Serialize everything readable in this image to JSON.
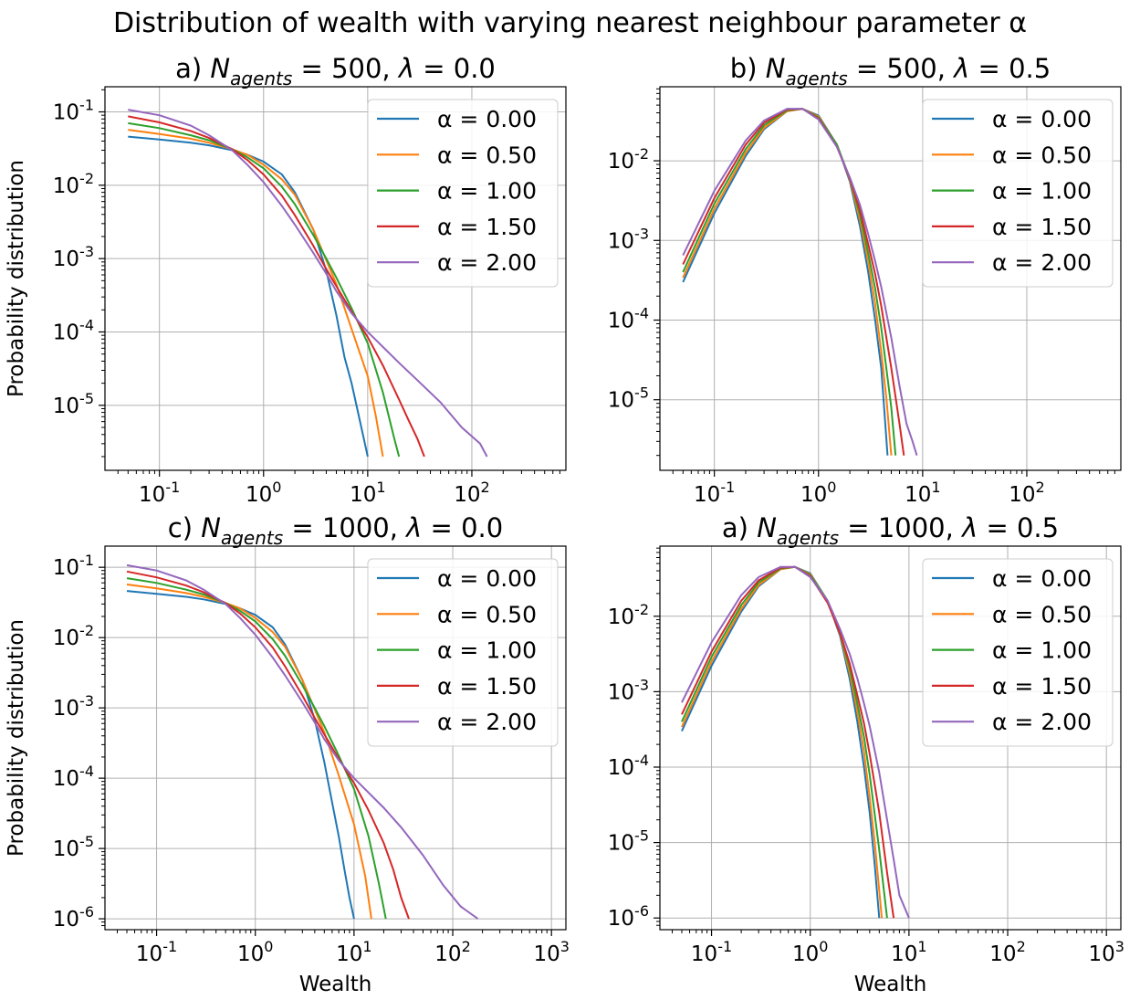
{
  "figure": {
    "suptitle": "Distribution of wealth with varying nearest neighbour parameter α"
  },
  "chart_data": [
    {
      "type": "line",
      "panel_prefix": "a)",
      "n_agents": "500",
      "lambda": "0.0",
      "xlabel": "",
      "ylabel": "Probability distribution",
      "xscale": "log",
      "yscale": "log",
      "xlim": [
        0.03,
        800
      ],
      "ylim": [
        1.3e-06,
        0.22
      ],
      "xticks": [
        0.1,
        1,
        10,
        100
      ],
      "yticks": [
        1e-05,
        0.0001,
        0.001,
        0.01,
        0.1
      ],
      "grid": true,
      "legend_loc": "upper right",
      "series": [
        {
          "name": "α = 0.00",
          "color": "#1f77b4",
          "x": [
            0.05,
            0.1,
            0.2,
            0.3,
            0.5,
            0.7,
            1,
            1.5,
            2,
            3,
            4,
            5,
            6,
            7,
            8,
            9,
            10
          ],
          "y": [
            0.046,
            0.042,
            0.038,
            0.035,
            0.03,
            0.026,
            0.021,
            0.014,
            0.008,
            0.0025,
            0.00068,
            0.00017,
            4.5e-05,
            2e-05,
            8.5e-06,
            4e-06,
            2e-06
          ]
        },
        {
          "name": "α = 0.50",
          "color": "#ff7f0e",
          "x": [
            0.05,
            0.1,
            0.2,
            0.3,
            0.5,
            0.7,
            1,
            1.5,
            2,
            3,
            4,
            5,
            7,
            10,
            12,
            14
          ],
          "y": [
            0.057,
            0.05,
            0.043,
            0.038,
            0.031,
            0.026,
            0.019,
            0.012,
            0.0074,
            0.0025,
            0.00095,
            0.00045,
            0.00011,
            2.5e-05,
            7e-06,
            2e-06
          ]
        },
        {
          "name": "α = 1.00",
          "color": "#2ca02c",
          "x": [
            0.05,
            0.1,
            0.2,
            0.3,
            0.5,
            0.7,
            1,
            1.5,
            2,
            3,
            4,
            5,
            7,
            10,
            14,
            18,
            20
          ],
          "y": [
            0.07,
            0.06,
            0.048,
            0.041,
            0.031,
            0.024,
            0.017,
            0.0095,
            0.0055,
            0.0021,
            0.001,
            0.00055,
            0.00021,
            7e-05,
            1.5e-05,
            3.5e-06,
            2e-06
          ]
        },
        {
          "name": "α = 1.50",
          "color": "#d62728",
          "x": [
            0.05,
            0.1,
            0.2,
            0.3,
            0.5,
            0.7,
            1,
            1.5,
            2,
            3,
            4,
            5,
            7,
            10,
            14,
            20,
            25,
            30,
            35
          ],
          "y": [
            0.087,
            0.072,
            0.055,
            0.044,
            0.031,
            0.022,
            0.014,
            0.0072,
            0.0039,
            0.0015,
            0.00072,
            0.00042,
            0.00019,
            8.5e-05,
            3.5e-05,
            1.2e-05,
            6e-06,
            3.5e-06,
            2e-06
          ]
        },
        {
          "name": "α = 2.00",
          "color": "#9467bd",
          "x": [
            0.05,
            0.1,
            0.2,
            0.3,
            0.5,
            0.7,
            1,
            1.5,
            2,
            3,
            4,
            5,
            7,
            10,
            20,
            30,
            50,
            80,
            120,
            140
          ],
          "y": [
            0.107,
            0.09,
            0.065,
            0.048,
            0.03,
            0.019,
            0.011,
            0.0052,
            0.0029,
            0.0012,
            0.00062,
            0.00036,
            0.00018,
            0.0001,
            3.8e-05,
            2.2e-05,
            1.1e-05,
            5e-06,
            3e-06,
            2e-06
          ]
        }
      ]
    },
    {
      "type": "line",
      "panel_prefix": "b)",
      "n_agents": "500",
      "lambda": "0.5",
      "xlabel": "",
      "ylabel": "",
      "xscale": "log",
      "yscale": "log",
      "xlim": [
        0.03,
        800
      ],
      "ylim": [
        1.3e-06,
        0.085
      ],
      "xticks": [
        0.1,
        1,
        10,
        100
      ],
      "yticks": [
        1e-05,
        0.0001,
        0.001,
        0.01
      ],
      "grid": true,
      "legend_loc": "upper right",
      "series": [
        {
          "name": "α = 0.00",
          "color": "#1f77b4",
          "x": [
            0.05,
            0.1,
            0.2,
            0.3,
            0.5,
            0.7,
            1,
            1.5,
            2,
            2.5,
            3,
            3.5,
            4,
            4.3,
            4.6
          ],
          "y": [
            0.0003,
            0.0022,
            0.0115,
            0.025,
            0.042,
            0.045,
            0.037,
            0.016,
            0.0055,
            0.0015,
            0.0004,
            0.0001,
            2.5e-05,
            7e-06,
            2e-06
          ]
        },
        {
          "name": "α = 0.50",
          "color": "#ff7f0e",
          "x": [
            0.05,
            0.1,
            0.2,
            0.3,
            0.5,
            0.7,
            1,
            1.5,
            2,
            2.5,
            3,
            3.5,
            4,
            4.5,
            5
          ],
          "y": [
            0.00034,
            0.0025,
            0.0125,
            0.026,
            0.042,
            0.045,
            0.036,
            0.016,
            0.0058,
            0.0018,
            0.00055,
            0.00016,
            4e-05,
            1e-05,
            2e-06
          ]
        },
        {
          "name": "α = 1.00",
          "color": "#2ca02c",
          "x": [
            0.05,
            0.1,
            0.2,
            0.3,
            0.5,
            0.7,
            1,
            1.5,
            2,
            2.5,
            3,
            3.5,
            4,
            5,
            5.5
          ],
          "y": [
            0.0004,
            0.0029,
            0.014,
            0.028,
            0.043,
            0.045,
            0.035,
            0.016,
            0.006,
            0.0021,
            0.0007,
            0.00025,
            8e-05,
            8e-06,
            2e-06
          ]
        },
        {
          "name": "α = 1.50",
          "color": "#d62728",
          "x": [
            0.05,
            0.1,
            0.2,
            0.3,
            0.5,
            0.7,
            1,
            1.5,
            2,
            2.5,
            3,
            3.5,
            4,
            5,
            6,
            6.6
          ],
          "y": [
            0.0005,
            0.0034,
            0.016,
            0.03,
            0.044,
            0.045,
            0.034,
            0.015,
            0.006,
            0.0024,
            0.0009,
            0.00038,
            0.00015,
            2.5e-05,
            5e-06,
            2e-06
          ]
        },
        {
          "name": "α = 2.00",
          "color": "#9467bd",
          "x": [
            0.05,
            0.1,
            0.2,
            0.3,
            0.5,
            0.7,
            1,
            1.5,
            2,
            2.5,
            3,
            3.5,
            4,
            5,
            6,
            7,
            8,
            8.8
          ],
          "y": [
            0.00065,
            0.0042,
            0.018,
            0.032,
            0.045,
            0.045,
            0.033,
            0.015,
            0.0062,
            0.0028,
            0.0012,
            0.00055,
            0.00026,
            6e-05,
            1.5e-05,
            5e-06,
            3e-06,
            2e-06
          ]
        }
      ]
    },
    {
      "type": "line",
      "panel_prefix": "c)",
      "n_agents": "1000",
      "lambda": "0.0",
      "xlabel": "Wealth",
      "ylabel": "Probability distribution",
      "xscale": "log",
      "yscale": "log",
      "xlim": [
        0.03,
        1400
      ],
      "ylim": [
        7e-07,
        0.2
      ],
      "xticks": [
        0.1,
        1,
        10,
        100,
        1000
      ],
      "yticks": [
        1e-06,
        1e-05,
        0.0001,
        0.001,
        0.01,
        0.1
      ],
      "grid": true,
      "legend_loc": "upper right",
      "series": [
        {
          "name": "α = 0.00",
          "color": "#1f77b4",
          "x": [
            0.05,
            0.1,
            0.2,
            0.3,
            0.5,
            0.7,
            1,
            1.5,
            2,
            3,
            4,
            5,
            6,
            7,
            8,
            9,
            10
          ],
          "y": [
            0.046,
            0.042,
            0.038,
            0.035,
            0.03,
            0.026,
            0.021,
            0.014,
            0.008,
            0.0025,
            0.00068,
            0.00017,
            4.5e-05,
            1.5e-05,
            5e-06,
            2e-06,
            1e-06
          ]
        },
        {
          "name": "α = 0.50",
          "color": "#ff7f0e",
          "x": [
            0.05,
            0.1,
            0.2,
            0.3,
            0.5,
            0.7,
            1,
            1.5,
            2,
            3,
            4,
            5,
            7,
            10,
            13,
            15
          ],
          "y": [
            0.057,
            0.05,
            0.043,
            0.038,
            0.031,
            0.026,
            0.019,
            0.012,
            0.0074,
            0.0025,
            0.00095,
            0.00045,
            0.00011,
            2.2e-05,
            4e-06,
            1e-06
          ]
        },
        {
          "name": "α = 1.00",
          "color": "#2ca02c",
          "x": [
            0.05,
            0.1,
            0.2,
            0.3,
            0.5,
            0.7,
            1,
            1.5,
            2,
            3,
            4,
            5,
            7,
            10,
            14,
            18,
            21
          ],
          "y": [
            0.07,
            0.06,
            0.048,
            0.041,
            0.031,
            0.024,
            0.017,
            0.0095,
            0.0055,
            0.0021,
            0.001,
            0.00055,
            0.00021,
            7e-05,
            1.5e-05,
            3e-06,
            1e-06
          ]
        },
        {
          "name": "α = 1.50",
          "color": "#d62728",
          "x": [
            0.05,
            0.1,
            0.2,
            0.3,
            0.5,
            0.7,
            1,
            1.5,
            2,
            3,
            4,
            5,
            7,
            10,
            14,
            20,
            25,
            30,
            36
          ],
          "y": [
            0.087,
            0.072,
            0.055,
            0.044,
            0.031,
            0.022,
            0.014,
            0.0072,
            0.0039,
            0.0015,
            0.00072,
            0.00042,
            0.00019,
            8.5e-05,
            3.5e-05,
            1.2e-05,
            5e-06,
            2e-06,
            1e-06
          ]
        },
        {
          "name": "α = 2.00",
          "color": "#9467bd",
          "x": [
            0.05,
            0.1,
            0.2,
            0.3,
            0.5,
            0.7,
            1,
            1.5,
            2,
            3,
            4,
            5,
            7,
            10,
            20,
            30,
            50,
            80,
            120,
            180
          ],
          "y": [
            0.107,
            0.09,
            0.065,
            0.048,
            0.03,
            0.019,
            0.011,
            0.0052,
            0.0029,
            0.0012,
            0.00062,
            0.00036,
            0.00018,
            0.0001,
            3.8e-05,
            2e-05,
            8e-06,
            3e-06,
            1.5e-06,
            1e-06
          ]
        }
      ]
    },
    {
      "type": "line",
      "panel_prefix": "a)",
      "n_agents": "1000",
      "lambda": "0.5",
      "xlabel": "Wealth",
      "ylabel": "",
      "xscale": "log",
      "yscale": "log",
      "xlim": [
        0.03,
        1400
      ],
      "ylim": [
        7e-07,
        0.085
      ],
      "xticks": [
        0.1,
        1,
        10,
        100,
        1000
      ],
      "yticks": [
        1e-06,
        1e-05,
        0.0001,
        0.001,
        0.01
      ],
      "grid": true,
      "legend_loc": "upper right",
      "series": [
        {
          "name": "α = 0.00",
          "color": "#1f77b4",
          "x": [
            0.05,
            0.1,
            0.2,
            0.3,
            0.5,
            0.7,
            1,
            1.5,
            2,
            2.5,
            3,
            3.5,
            4,
            4.5,
            5
          ],
          "y": [
            0.0003,
            0.0022,
            0.0115,
            0.025,
            0.042,
            0.045,
            0.037,
            0.016,
            0.0055,
            0.0015,
            0.0004,
            0.0001,
            2.5e-05,
            5e-06,
            1e-06
          ]
        },
        {
          "name": "α = 0.50",
          "color": "#ff7f0e",
          "x": [
            0.05,
            0.1,
            0.2,
            0.3,
            0.5,
            0.7,
            1,
            1.5,
            2,
            2.5,
            3,
            3.5,
            4,
            4.5,
            5.3
          ],
          "y": [
            0.00034,
            0.0025,
            0.0125,
            0.026,
            0.042,
            0.045,
            0.036,
            0.016,
            0.0058,
            0.0018,
            0.00055,
            0.00016,
            4e-05,
            1e-05,
            1e-06
          ]
        },
        {
          "name": "α = 1.00",
          "color": "#2ca02c",
          "x": [
            0.05,
            0.1,
            0.2,
            0.3,
            0.5,
            0.7,
            1,
            1.5,
            2,
            2.5,
            3,
            3.5,
            4,
            5,
            6
          ],
          "y": [
            0.0004,
            0.0029,
            0.014,
            0.028,
            0.043,
            0.045,
            0.035,
            0.016,
            0.006,
            0.0021,
            0.0007,
            0.00025,
            8e-05,
            8e-06,
            1e-06
          ]
        },
        {
          "name": "α = 1.50",
          "color": "#d62728",
          "x": [
            0.05,
            0.1,
            0.2,
            0.3,
            0.5,
            0.7,
            1,
            1.5,
            2,
            2.5,
            3,
            3.5,
            4,
            5,
            6,
            7
          ],
          "y": [
            0.0005,
            0.0034,
            0.016,
            0.03,
            0.044,
            0.045,
            0.034,
            0.015,
            0.006,
            0.0024,
            0.0009,
            0.00038,
            0.00015,
            2.5e-05,
            4e-06,
            1e-06
          ]
        },
        {
          "name": "α = 2.00",
          "color": "#9467bd",
          "x": [
            0.05,
            0.1,
            0.2,
            0.3,
            0.5,
            0.7,
            1,
            1.5,
            2,
            2.5,
            3,
            3.5,
            4,
            5,
            6,
            7,
            8,
            10
          ],
          "y": [
            0.00072,
            0.0045,
            0.019,
            0.033,
            0.045,
            0.045,
            0.033,
            0.016,
            0.0068,
            0.0032,
            0.0015,
            0.0007,
            0.00035,
            8.5e-05,
            2e-05,
            6e-06,
            2e-06,
            1e-06
          ]
        }
      ]
    }
  ]
}
